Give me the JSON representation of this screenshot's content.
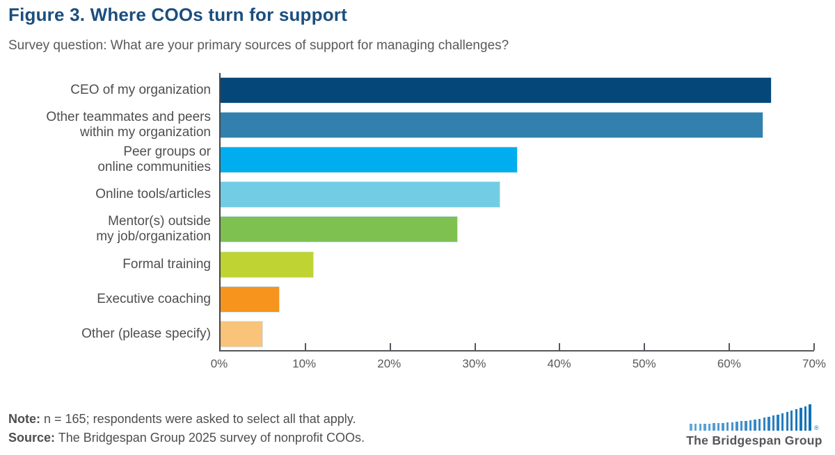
{
  "header": {
    "title": "Figure 3. Where COOs turn for support",
    "subtitle": "Survey question: What are your primary sources of support for managing challenges?"
  },
  "chart_data": {
    "type": "bar",
    "orientation": "horizontal",
    "title": "Figure 3. Where COOs turn for support",
    "categories": [
      "CEO of my organization",
      "Other teammates and peers\nwithin my organization",
      "Peer groups or\nonline communities",
      "Online tools/articles",
      "Mentor(s) outside\nmy job/organization",
      "Formal training",
      "Executive coaching",
      "Other (please specify)"
    ],
    "values": [
      65,
      64,
      35,
      33,
      28,
      11,
      7,
      5
    ],
    "unit": "%",
    "bar_colors": [
      "#06477A",
      "#3380AF",
      "#00AEEF",
      "#72CCE4",
      "#7FC151",
      "#BFD433",
      "#F7941E",
      "#F9C379"
    ],
    "xlim": [
      0,
      70
    ],
    "x_ticks": [
      "0%",
      "10%",
      "20%",
      "30%",
      "40%",
      "50%",
      "60%",
      "70%"
    ],
    "xlabel": "",
    "ylabel": "",
    "grid": false,
    "legend": null
  },
  "footer": {
    "note_label": "Note:",
    "note_text": "n = 165; respondents were asked to select all that apply.",
    "source_label": "Source:",
    "source_text": "The Bridgespan Group 2025 survey of nonprofit COOs."
  },
  "logo": {
    "name": "The Bridgespan Group",
    "registered_mark": "®"
  },
  "colors": {
    "title": "#1B4E7E",
    "subtitle": "#58595B",
    "axis": "#55565A",
    "category_label": "#4D4E50"
  }
}
